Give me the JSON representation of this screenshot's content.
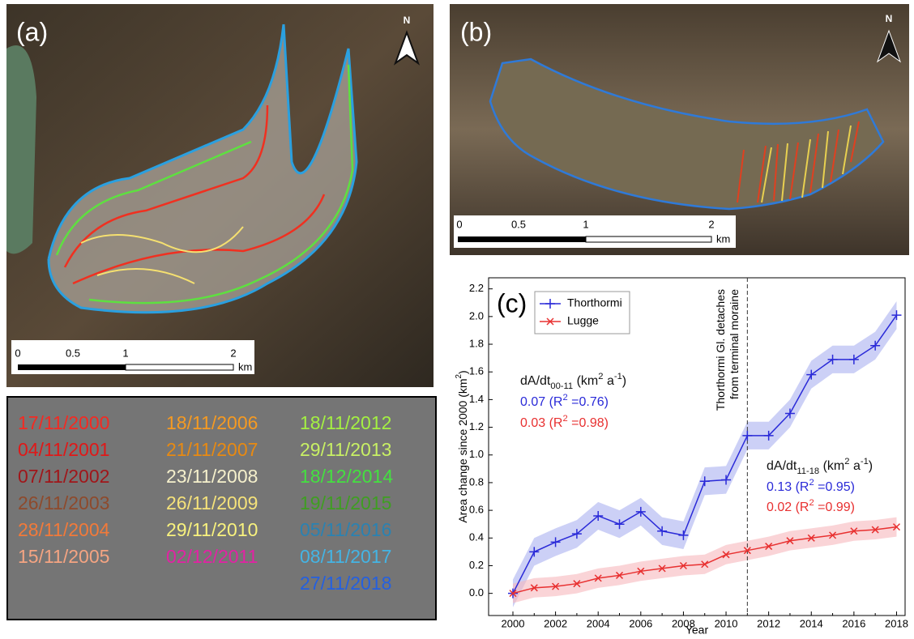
{
  "panels": {
    "a": {
      "label": "(a)",
      "north": "N",
      "scale": [
        "0",
        "0.5",
        "1",
        "2",
        "km"
      ]
    },
    "b": {
      "label": "(b)",
      "north": "N",
      "scale": [
        "0",
        "0.5",
        "1",
        "2",
        "km"
      ]
    }
  },
  "dates": [
    [
      {
        "text": "17/11/2000",
        "color": "#f42a22"
      },
      {
        "text": "04/11/2001",
        "color": "#e01818"
      },
      {
        "text": "07/11/2002",
        "color": "#a0161a"
      },
      {
        "text": "26/11/2003",
        "color": "#8e4a2c"
      },
      {
        "text": "28/11/2004",
        "color": "#f27a3a"
      },
      {
        "text": "15/11/2005",
        "color": "#f4a482"
      }
    ],
    [
      {
        "text": "18/11/2006",
        "color": "#f59a22"
      },
      {
        "text": "21/11/2007",
        "color": "#e88a12"
      },
      {
        "text": "23/11/2008",
        "color": "#f5f0cc"
      },
      {
        "text": "26/11/2009",
        "color": "#f5e27a"
      },
      {
        "text": "29/11/2010",
        "color": "#f8f27e"
      },
      {
        "text": "02/12/2011",
        "color": "#e222a4"
      }
    ],
    [
      {
        "text": "18/11/2012",
        "color": "#a4f042"
      },
      {
        "text": "29/11/2013",
        "color": "#c8f064"
      },
      {
        "text": "18/12/2014",
        "color": "#44e040"
      },
      {
        "text": "19/11/2015",
        "color": "#3f9e22"
      },
      {
        "text": "05/11/2016",
        "color": "#2a82b2"
      },
      {
        "text": "08/11/2017",
        "color": "#44b4e4"
      },
      {
        "text": "27/11/2018",
        "color": "#2460e0"
      }
    ]
  ],
  "chart_data": {
    "type": "line",
    "panel_label": "(c)",
    "x_label": "Year",
    "y_label": [
      {
        "text": "Area change since 2000 (km"
      },
      {
        "text": "2",
        "shift": "super"
      },
      {
        "text": ")"
      }
    ],
    "x": [
      2000,
      2001,
      2002,
      2003,
      2004,
      2005,
      2006,
      2007,
      2008,
      2009,
      2010,
      2011,
      2012,
      2013,
      2014,
      2015,
      2016,
      2017,
      2018
    ],
    "series": [
      {
        "name": "Thorthormi",
        "color": "#2a2ad8",
        "band_color": "#aab0f0",
        "marker": "plus",
        "error": 0.1,
        "values": [
          0.0,
          0.3,
          0.37,
          0.43,
          0.56,
          0.5,
          0.59,
          0.45,
          0.42,
          0.81,
          0.82,
          1.14,
          1.14,
          1.3,
          1.58,
          1.69,
          1.69,
          1.79,
          2.01
        ]
      },
      {
        "name": "Lugge",
        "color": "#e83030",
        "band_color": "#f6b8bc",
        "marker": "x",
        "error": 0.07,
        "values": [
          0.0,
          0.04,
          0.05,
          0.07,
          0.11,
          0.13,
          0.16,
          0.18,
          0.2,
          0.21,
          0.28,
          0.31,
          0.34,
          0.38,
          0.4,
          0.42,
          0.45,
          0.46,
          0.48
        ]
      }
    ],
    "xlim": [
      1998.86,
      2018.4
    ],
    "ylim": [
      -0.16,
      2.28
    ],
    "xticks": [
      2000,
      2002,
      2004,
      2006,
      2008,
      2010,
      2012,
      2014,
      2016,
      2018
    ],
    "yticks": [
      {
        "value": 0,
        "label": "0.0"
      },
      {
        "value": 0.2,
        "label": "0.2"
      },
      {
        "value": 0.4,
        "label": "0.4"
      },
      {
        "value": 0.6,
        "label": "0.6"
      },
      {
        "value": 0.8,
        "label": "0.8"
      },
      {
        "value": 1.0,
        "label": "1.0"
      },
      {
        "value": 1.2,
        "label": "1.2"
      },
      {
        "value": 1.4,
        "label": "1.4"
      },
      {
        "value": 1.6,
        "label": "1.6"
      },
      {
        "value": 1.8,
        "label": "1.8"
      },
      {
        "value": 2.0,
        "label": "2.0"
      },
      {
        "value": 2.2,
        "label": "2.2"
      }
    ],
    "legend": "upper left",
    "event": {
      "x": 2011,
      "labels": [
        "Thorthormi Gl. detaches",
        "from terminal moraine"
      ]
    },
    "annotations": [
      {
        "color": "#111111",
        "parts": [
          {
            "text": "dA/dt"
          },
          {
            "text": "00-11",
            "shift": "sub"
          },
          {
            "text": " (km"
          },
          {
            "text": "2",
            "shift": "super"
          },
          {
            "text": " a"
          },
          {
            "text": "-1",
            "shift": "super"
          },
          {
            "text": ")"
          }
        ]
      },
      {
        "color": "#2a2ad8",
        "parts": [
          {
            "text": "0.07 (R"
          },
          {
            "text": "2",
            "shift": "super"
          },
          {
            "text": " =0.76)"
          }
        ]
      },
      {
        "color": "#e83030",
        "parts": [
          {
            "text": "0.03 (R"
          },
          {
            "text": "2",
            "shift": "super"
          },
          {
            "text": " =0.98)"
          }
        ]
      },
      {
        "color": "#111111",
        "parts": [
          {
            "text": "dA/dt"
          },
          {
            "text": "11-18",
            "shift": "sub"
          },
          {
            "text": " (km"
          },
          {
            "text": "2",
            "shift": "super"
          },
          {
            "text": " a"
          },
          {
            "text": "-1",
            "shift": "super"
          },
          {
            "text": ")"
          }
        ]
      },
      {
        "color": "#2a2ad8",
        "parts": [
          {
            "text": "0.13 (R"
          },
          {
            "text": "2",
            "shift": "super"
          },
          {
            "text": " =0.95)"
          }
        ]
      },
      {
        "color": "#e83030",
        "parts": [
          {
            "text": "0.02 (R"
          },
          {
            "text": "2",
            "shift": "super"
          },
          {
            "text": " =0.99)"
          }
        ]
      }
    ]
  }
}
